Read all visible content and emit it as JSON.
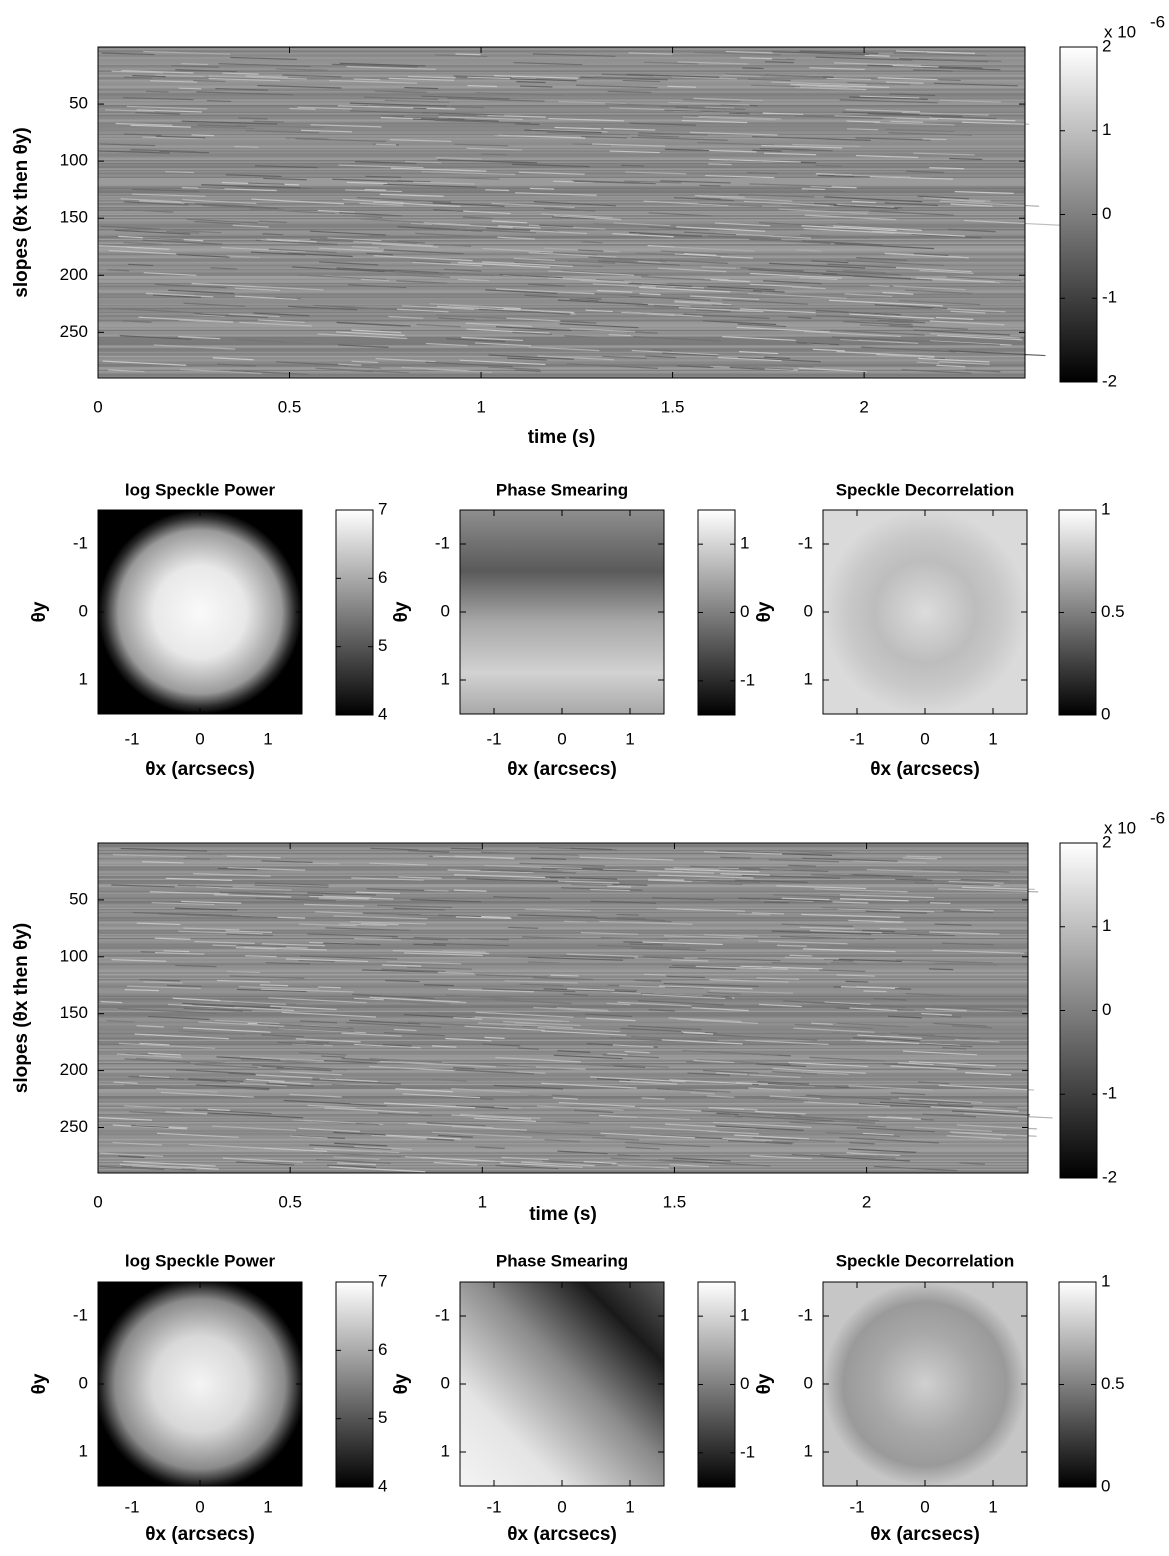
{
  "chart_data": [
    {
      "type": "heatmap",
      "xlabel": "time (s)",
      "ylabel": "slopes (θx then θy)",
      "xlim": [
        0,
        2.42
      ],
      "xticks": [
        0,
        0.5,
        1,
        1.5,
        2
      ],
      "ylim": [
        0,
        290
      ],
      "yticks": [
        50,
        100,
        150,
        200,
        250
      ],
      "y_reversed": true,
      "colorbar": {
        "lim": [
          -2,
          2
        ],
        "ticks": [
          -2,
          -1,
          0,
          1,
          2
        ],
        "multiplier": {
          "base": "x 10",
          "exponent": "-6"
        }
      }
    },
    {
      "type": "heatmap",
      "title": "log Speckle Power",
      "xlabel": "θx (arcsecs)",
      "ylabel": "θy",
      "xlim": [
        -1.5,
        1.5
      ],
      "xticks": [
        -1,
        0,
        1
      ],
      "ylim": [
        -1.5,
        1.5
      ],
      "yticks": [
        -1,
        0,
        1
      ],
      "y_reversed": true,
      "colorbar": {
        "lim": [
          4,
          7
        ],
        "ticks": [
          4,
          5,
          6,
          7
        ]
      }
    },
    {
      "type": "heatmap",
      "title": "Phase Smearing",
      "xlabel": "θx (arcsecs)",
      "ylabel": "θy",
      "xlim": [
        -1.5,
        1.5
      ],
      "xticks": [
        -1,
        0,
        1
      ],
      "ylim": [
        -1.5,
        1.5
      ],
      "yticks": [
        -1,
        0,
        1
      ],
      "y_reversed": true,
      "colorbar": {
        "lim": [
          -1.5,
          1.5
        ],
        "ticks": [
          -1,
          0,
          1
        ]
      }
    },
    {
      "type": "heatmap",
      "title": "Speckle Decorrelation",
      "xlabel": "θx (arcsecs)",
      "ylabel": "θy",
      "xlim": [
        -1.5,
        1.5
      ],
      "xticks": [
        -1,
        0,
        1
      ],
      "ylim": [
        -1.5,
        1.5
      ],
      "yticks": [
        -1,
        0,
        1
      ],
      "y_reversed": true,
      "colorbar": {
        "lim": [
          0,
          1
        ],
        "ticks": [
          0,
          0.5,
          1
        ]
      }
    },
    {
      "type": "heatmap",
      "xlabel": "time (s)",
      "ylabel": "slopes (θx then θy)",
      "xlim": [
        0,
        2.42
      ],
      "xticks": [
        0,
        0.5,
        1,
        1.5,
        2
      ],
      "ylim": [
        0,
        290
      ],
      "yticks": [
        50,
        100,
        150,
        200,
        250
      ],
      "y_reversed": true,
      "colorbar": {
        "lim": [
          -2,
          2
        ],
        "ticks": [
          -2,
          -1,
          0,
          1,
          2
        ],
        "multiplier": {
          "base": "x 10",
          "exponent": "-6"
        }
      }
    },
    {
      "type": "heatmap",
      "title": "log Speckle Power",
      "xlabel": "θx (arcsecs)",
      "ylabel": "θy",
      "xlim": [
        -1.5,
        1.5
      ],
      "xticks": [
        -1,
        0,
        1
      ],
      "ylim": [
        -1.5,
        1.5
      ],
      "yticks": [
        -1,
        0,
        1
      ],
      "y_reversed": true,
      "colorbar": {
        "lim": [
          4,
          7
        ],
        "ticks": [
          4,
          5,
          6,
          7
        ]
      }
    },
    {
      "type": "heatmap",
      "title": "Phase Smearing",
      "xlabel": "θx (arcsecs)",
      "ylabel": "θy",
      "xlim": [
        -1.5,
        1.5
      ],
      "xticks": [
        -1,
        0,
        1
      ],
      "ylim": [
        -1.5,
        1.5
      ],
      "yticks": [
        -1,
        0,
        1
      ],
      "y_reversed": true,
      "colorbar": {
        "lim": [
          -1.5,
          1.5
        ],
        "ticks": [
          -1,
          0,
          1
        ]
      }
    },
    {
      "type": "heatmap",
      "title": "Speckle Decorrelation",
      "xlabel": "θx (arcsecs)",
      "ylabel": "θy",
      "xlim": [
        -1.5,
        1.5
      ],
      "xticks": [
        -1,
        0,
        1
      ],
      "ylim": [
        -1.5,
        1.5
      ],
      "yticks": [
        -1,
        0,
        1
      ],
      "y_reversed": true,
      "colorbar": {
        "lim": [
          0,
          1
        ],
        "ticks": [
          0,
          0.5,
          1
        ]
      }
    }
  ]
}
